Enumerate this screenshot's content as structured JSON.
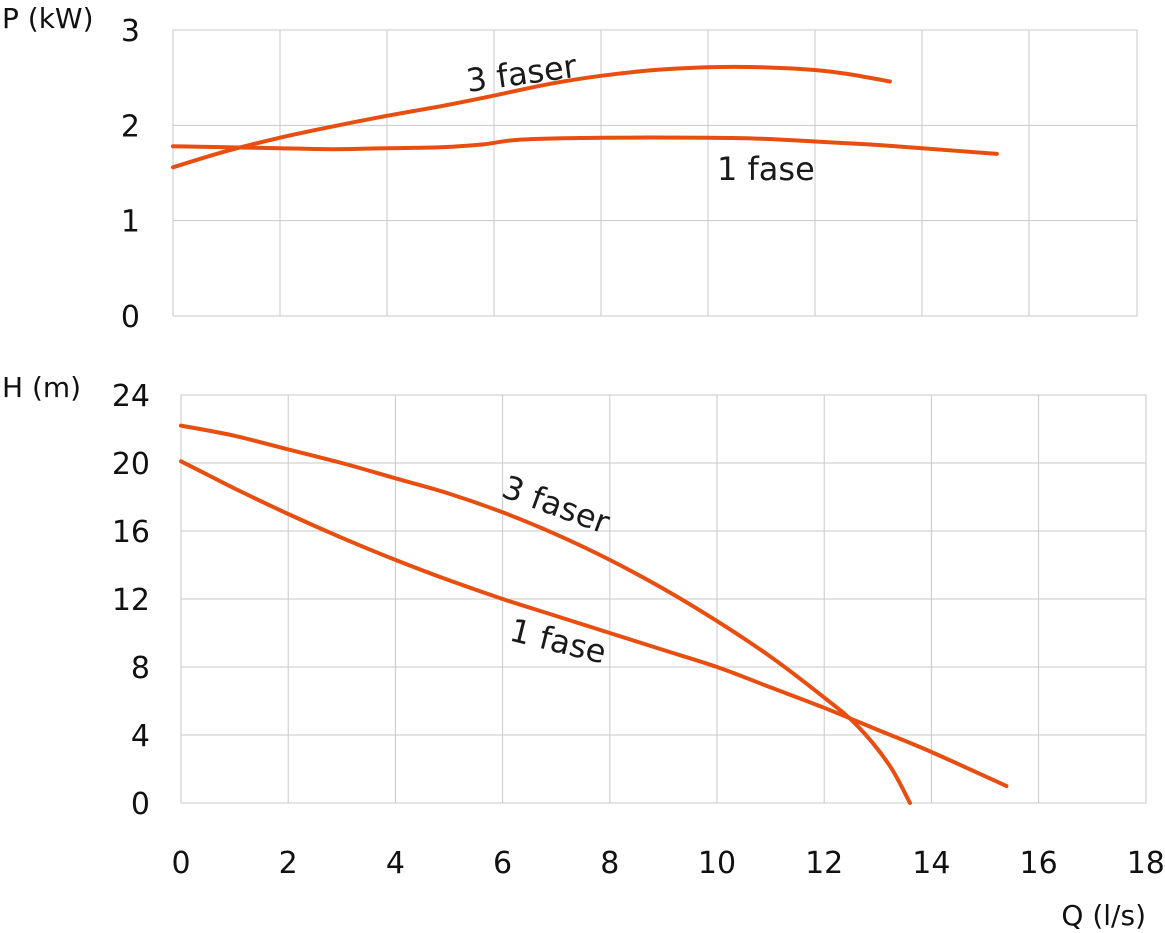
{
  "chart_data": [
    {
      "type": "line",
      "ylabel": "P  (kW)",
      "xlabel": "",
      "xlim": [
        0,
        18
      ],
      "ylim": [
        0,
        3
      ],
      "x_ticks": [
        0,
        2,
        4,
        6,
        8,
        10,
        12,
        14,
        16,
        18
      ],
      "y_ticks": [
        "0",
        "1",
        "2",
        "3"
      ],
      "grid": true,
      "series": [
        {
          "name": "3 faser",
          "x": [
            -0.1,
            1,
            2,
            3,
            4,
            5,
            5.9,
            7,
            8,
            9,
            10,
            11,
            12,
            12.6,
            13.4
          ],
          "y": [
            1.56,
            1.73,
            1.87,
            1.99,
            2.1,
            2.2,
            2.3,
            2.43,
            2.52,
            2.58,
            2.61,
            2.61,
            2.58,
            2.54,
            2.46
          ]
        },
        {
          "name": "1 fase",
          "x": [
            -0.1,
            1,
            2,
            3,
            4,
            5,
            5.8,
            6.5,
            8,
            10,
            11,
            12,
            13,
            14,
            15.4
          ],
          "y": [
            1.78,
            1.77,
            1.76,
            1.75,
            1.76,
            1.77,
            1.8,
            1.85,
            1.87,
            1.87,
            1.86,
            1.83,
            1.8,
            1.76,
            1.7
          ]
        }
      ]
    },
    {
      "type": "line",
      "ylabel": "H  (m)",
      "xlabel": "Q  (l/s)",
      "xlim": [
        0,
        18
      ],
      "ylim": [
        0,
        24
      ],
      "x_ticks": [
        "0",
        "2",
        "4",
        "6",
        "8",
        "10",
        "12",
        "14",
        "16",
        "18"
      ],
      "y_ticks": [
        "0",
        "4",
        "8",
        "12",
        "16",
        "20",
        "24"
      ],
      "grid": true,
      "series": [
        {
          "name": "3 faser",
          "x": [
            0,
            1,
            2,
            3,
            4,
            5,
            6,
            7,
            8,
            9,
            10,
            11,
            12,
            12.6,
            13.2,
            13.6
          ],
          "y": [
            22.2,
            21.6,
            20.8,
            20.0,
            19.1,
            18.2,
            17.1,
            15.8,
            14.3,
            12.6,
            10.7,
            8.6,
            6.2,
            4.6,
            2.3,
            0
          ]
        },
        {
          "name": "1 fase",
          "x": [
            0,
            0.5,
            1,
            2,
            3,
            4,
            5,
            6,
            7,
            8,
            9,
            10,
            11,
            12,
            13,
            14,
            15.4
          ],
          "y": [
            20.1,
            19.3,
            18.5,
            17.0,
            15.6,
            14.3,
            13.1,
            12.0,
            11.0,
            10.0,
            9.0,
            8.0,
            6.8,
            5.6,
            4.3,
            3.0,
            1.0
          ]
        }
      ]
    }
  ]
}
